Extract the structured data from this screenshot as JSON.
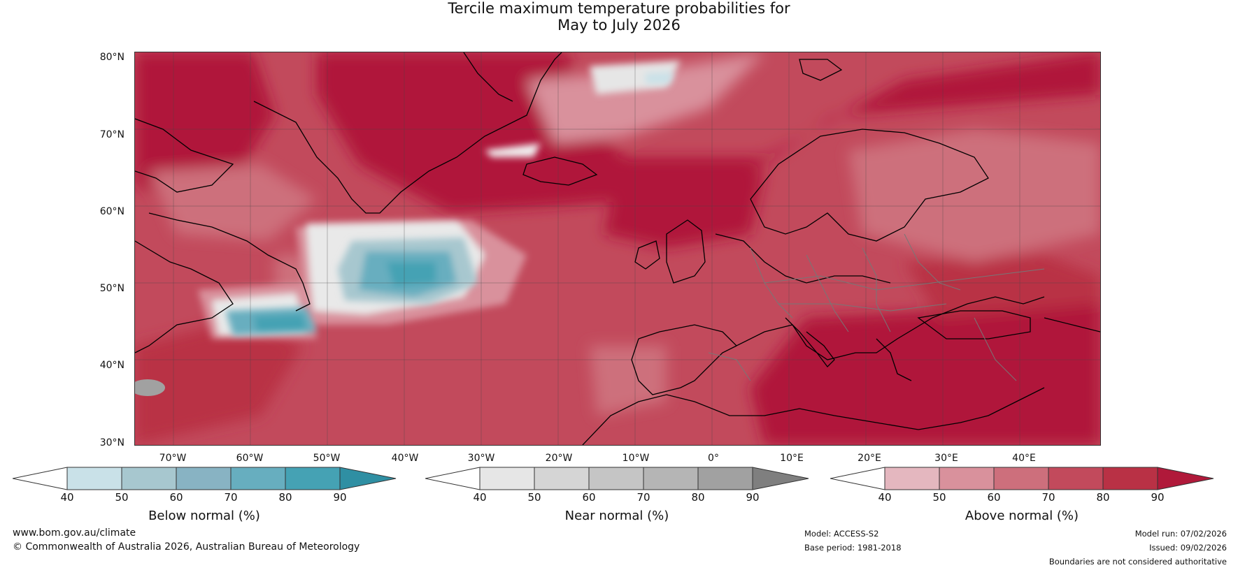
{
  "title": {
    "line1": "Tercile maximum temperature probabilities for",
    "line2": "May to July 2026"
  },
  "map": {
    "lat_labels": [
      "80°N",
      "70°N",
      "60°N",
      "50°N",
      "40°N",
      "30°N"
    ],
    "lon_labels": [
      "70°W",
      "60°W",
      "50°W",
      "40°W",
      "30°W",
      "20°W",
      "10°W",
      "0°",
      "10°E",
      "20°E",
      "30°E",
      "40°E"
    ]
  },
  "colorbars": [
    {
      "label": "Below normal (%)",
      "ticks": [
        "40",
        "50",
        "60",
        "70",
        "80",
        "90"
      ],
      "colors": [
        "#ffffff",
        "#c9e1e8",
        "#a7c7cf",
        "#88b3c3",
        "#67aebf",
        "#45a2b4",
        "#2f8fa3"
      ]
    },
    {
      "label": "Near normal (%)",
      "ticks": [
        "40",
        "50",
        "60",
        "70",
        "80",
        "90"
      ],
      "colors": [
        "#ffffff",
        "#e6e6e6",
        "#d5d5d5",
        "#c5c5c5",
        "#b5b5b5",
        "#a1a1a1",
        "#7f7f7f"
      ]
    },
    {
      "label": "Above normal (%)",
      "ticks": [
        "40",
        "50",
        "60",
        "70",
        "80",
        "90"
      ],
      "colors": [
        "#ffffff",
        "#e4b7bf",
        "#d9919c",
        "#cd6f7c",
        "#c24a5c",
        "#b93145",
        "#b0193a"
      ]
    }
  ],
  "footer": {
    "website": "www.bom.gov.au/climate",
    "copyright": "© Commonwealth of Australia 2026, Australian Bureau of Meteorology",
    "model": "Model: ACCESS-S2",
    "base_period": "Base period: 1981-2018",
    "model_run": "Model run: 07/02/2026",
    "issued": "Issued: 09/02/2026",
    "disclaimer": "Boundaries are not considered authoritative"
  }
}
